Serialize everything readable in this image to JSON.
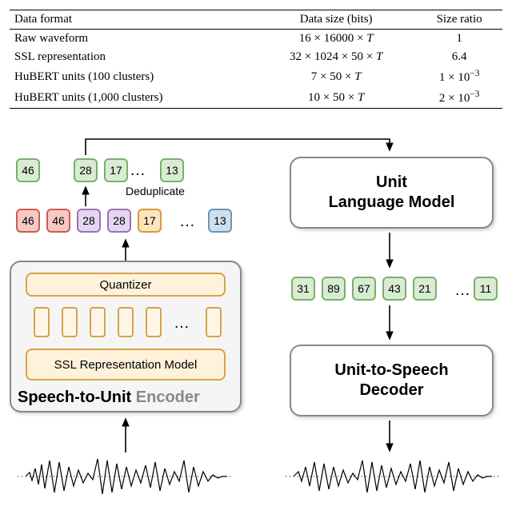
{
  "table": {
    "columns": [
      "Data format",
      "Data size (bits)",
      "Size ratio"
    ],
    "rows": [
      [
        "Raw waveform",
        "16 × 16000 × <i>T</i>",
        "1"
      ],
      [
        "SSL representation",
        "32 × 1024 × 50 × <i>T</i>",
        "6.4"
      ],
      [
        "HuBERT units (100 clusters)",
        "7 × 50 × <i>T</i>",
        "1 × 10<span class='sup'>−3</span>"
      ],
      [
        "HuBERT units (1,000 clusters)",
        "10 × 50 × <i>T</i>",
        "2 × 10<span class='sup'>−3</span>"
      ]
    ]
  },
  "colors": {
    "red_fill": "#f6c9c5",
    "red_border": "#cf5b52",
    "purple_fill": "#e4d6ef",
    "purple_border": "#9a72b8",
    "orange_fill": "#fbe5bd",
    "orange_border": "#d99a3a",
    "blue_fill": "#cfe0ec",
    "blue_border": "#6a97b8",
    "green_fill": "#d9ecd3",
    "green_border": "#7ab06c",
    "encoder_inner_fill": "#fff2db",
    "encoder_inner_border": "#d8a24a",
    "blank_fill": "#fdf6e8",
    "blank_border": "#d8a24a",
    "box_bg": "#ffffff",
    "box_border": "#888888"
  },
  "tokens_row1": [
    {
      "v": "46",
      "c": "red"
    },
    {
      "v": "46",
      "c": "red"
    },
    {
      "v": "28",
      "c": "purple"
    },
    {
      "v": "28",
      "c": "purple"
    },
    {
      "v": "17",
      "c": "orange"
    },
    {
      "v": "13",
      "c": "blue"
    }
  ],
  "tokens_row2": [
    {
      "v": "46",
      "c": "green"
    },
    {
      "v": "28",
      "c": "green"
    },
    {
      "v": "17",
      "c": "green"
    },
    {
      "v": "13",
      "c": "green"
    }
  ],
  "tokens_out": [
    {
      "v": "31"
    },
    {
      "v": "89"
    },
    {
      "v": "67"
    },
    {
      "v": "43"
    },
    {
      "v": "21"
    },
    {
      "v": "11"
    }
  ],
  "labels": {
    "dedup": "Deduplicate",
    "quantizer": "Quantizer",
    "ssl": "SSL Representation Model",
    "encoder_title_a": "Speech-to-Unit",
    "encoder_title_b": "Encoder",
    "ulm_a": "Unit",
    "ulm_b": "Language Model",
    "u2s_a": "Unit-to-Speech",
    "u2s_b": "Decoder"
  }
}
